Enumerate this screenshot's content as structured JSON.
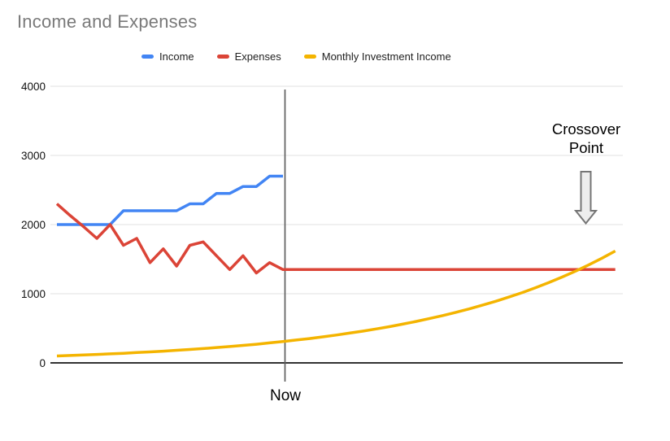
{
  "title": "Income and Expenses",
  "legend": {
    "items": [
      {
        "label": "Income",
        "color": "#4285F4"
      },
      {
        "label": "Expenses",
        "color": "#DB4437"
      },
      {
        "label": "Monthly Investment Income",
        "color": "#F4B400"
      }
    ]
  },
  "annotations": {
    "now_label": "Now",
    "crossover_lines": [
      "Crossover",
      "Point"
    ]
  },
  "colors": {
    "income": "#4285F4",
    "expenses": "#DB4437",
    "investment": "#F4B400",
    "gridline": "#e2e2e2",
    "axis": "#333333",
    "now_line": "#5f5f5f",
    "title_text": "#7a7a7a",
    "arrow_fill": "#ededed",
    "arrow_stroke": "#757575"
  },
  "chart_data": {
    "type": "line",
    "title": "Income and Expenses",
    "xlabel": "",
    "ylabel": "",
    "ylim": [
      0,
      4000
    ],
    "y_ticks": [
      0,
      1000,
      2000,
      3000,
      4000
    ],
    "grid": true,
    "legend_position": "top",
    "x_unit": "months (evenly spaced points)",
    "now_index": 17,
    "point_count": 43,
    "series": [
      {
        "name": "Income",
        "color": "#4285F4",
        "values": [
          2000,
          2000,
          2000,
          2000,
          2000,
          2200,
          2200,
          2200,
          2200,
          2200,
          2300,
          2300,
          2450,
          2450,
          2550,
          2550,
          2700,
          2700
        ]
      },
      {
        "name": "Expenses",
        "color": "#DB4437",
        "values": [
          2300,
          2130,
          1970,
          1800,
          2000,
          1700,
          1800,
          1450,
          1650,
          1400,
          1700,
          1750,
          1550,
          1350,
          1550,
          1300,
          1450,
          1350,
          1350,
          1350,
          1350,
          1350,
          1350,
          1350,
          1350,
          1350,
          1350,
          1350,
          1350,
          1350,
          1350,
          1350,
          1350,
          1350,
          1350,
          1350,
          1350,
          1350,
          1350,
          1350,
          1350,
          1350,
          1350
        ]
      },
      {
        "name": "Monthly Investment Income",
        "color": "#F4B400",
        "values": [
          100,
          107,
          114,
          122,
          130,
          139,
          149,
          159,
          170,
          182,
          194,
          207,
          222,
          237,
          253,
          270,
          289,
          309,
          330,
          352,
          377,
          402,
          430,
          459,
          491,
          524,
          560,
          599,
          640,
          684,
          730,
          780,
          834,
          891,
          952,
          1017,
          1087,
          1161,
          1241,
          1326,
          1417,
          1514,
          1618
        ]
      }
    ]
  }
}
